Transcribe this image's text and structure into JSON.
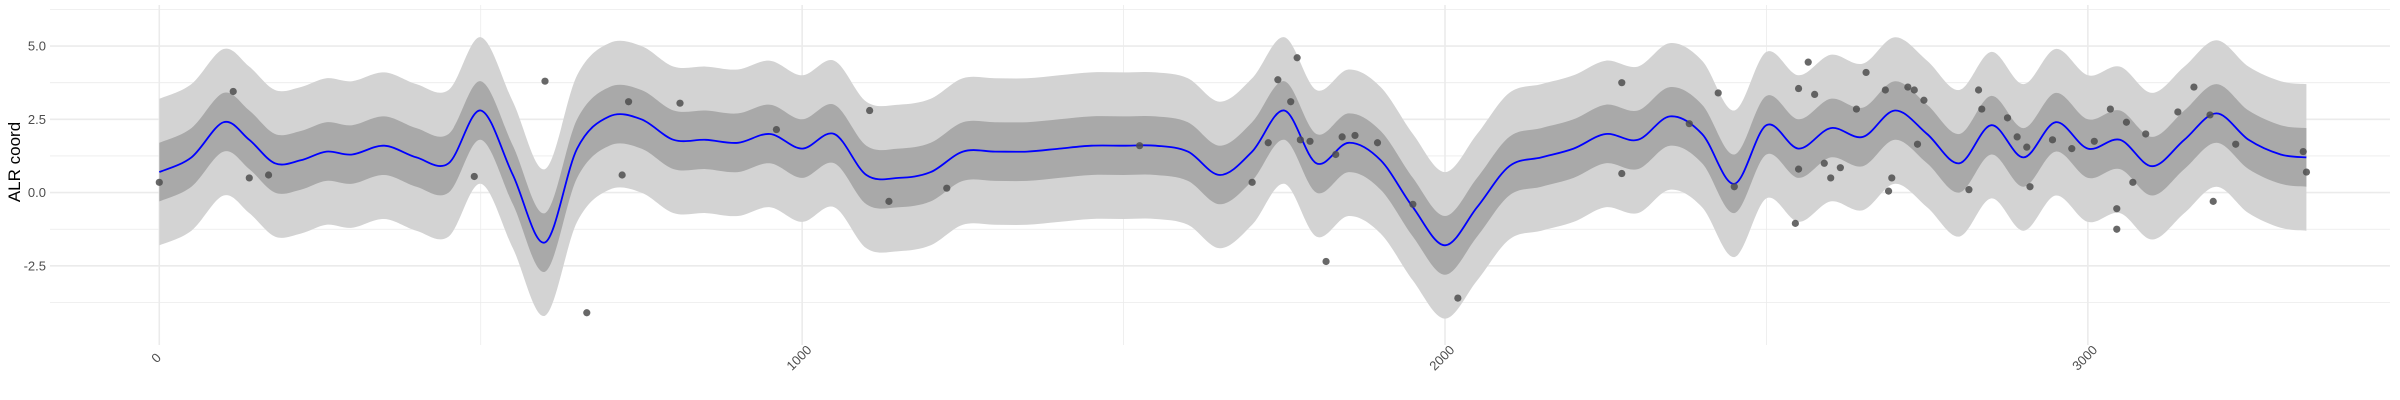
{
  "chart_data": {
    "type": "line",
    "title": "",
    "xlabel": "",
    "ylabel": "ALR coord",
    "xlim": [
      -170,
      3470
    ],
    "ylim": [
      -5.2,
      6.4
    ],
    "x_ticks": [
      0,
      1000,
      2000,
      3000
    ],
    "x_tick_labels": [
      "0",
      "1000",
      "2000",
      "3000"
    ],
    "y_ticks": [
      -2.5,
      0.0,
      2.5,
      5.0
    ],
    "y_tick_labels": [
      "-2.5",
      "0.0",
      "2.5",
      "5.0"
    ],
    "grid": true,
    "colors": {
      "mean_line": "#0000ff",
      "inner_band": "#a9a9a9",
      "outer_band": "#d3d3d3",
      "points": "#4d4d4d",
      "grid": "#ebebeb"
    },
    "series": [
      {
        "x": [
          0,
          50,
          100,
          140,
          180,
          220,
          260,
          300,
          350,
          400,
          450,
          500,
          550,
          600,
          650,
          700,
          750,
          800,
          850,
          900,
          950,
          1000,
          1050,
          1100,
          1150,
          1200,
          1250,
          1300,
          1350,
          1400,
          1450,
          1500,
          1550,
          1600,
          1650,
          1700,
          1750,
          1800,
          1850,
          1900,
          1950,
          2000,
          2050,
          2100,
          2150,
          2200,
          2250,
          2300,
          2350,
          2400,
          2450,
          2500,
          2550,
          2600,
          2650,
          2700,
          2750,
          2800,
          2850,
          2900,
          2950,
          3000,
          3050,
          3100,
          3150,
          3200,
          3250,
          3300,
          3340
        ],
        "mean": [
          0.7,
          1.2,
          2.4,
          1.8,
          1.0,
          1.1,
          1.4,
          1.3,
          1.6,
          1.2,
          1.0,
          2.8,
          0.6,
          -1.7,
          1.5,
          2.6,
          2.5,
          1.8,
          1.8,
          1.7,
          2.0,
          1.5,
          2.0,
          0.6,
          0.5,
          0.7,
          1.4,
          1.4,
          1.4,
          1.5,
          1.6,
          1.6,
          1.6,
          1.4,
          0.6,
          1.4,
          2.8,
          1.0,
          1.7,
          1.1,
          -0.5,
          -1.8,
          -0.5,
          0.9,
          1.2,
          1.5,
          2.0,
          1.8,
          2.6,
          2.0,
          0.3,
          2.3,
          1.5,
          2.2,
          1.9,
          2.8,
          2.0,
          1.0,
          2.3,
          1.2,
          2.4,
          1.5,
          1.8,
          0.9,
          1.8,
          2.7,
          1.8,
          1.3,
          1.2
        ],
        "inner_lower": [
          -0.3,
          0.2,
          1.4,
          0.8,
          0.0,
          0.1,
          0.4,
          0.3,
          0.6,
          0.2,
          0.0,
          1.8,
          -0.4,
          -2.7,
          0.5,
          1.6,
          1.5,
          0.8,
          0.8,
          0.7,
          1.0,
          0.5,
          1.0,
          -0.4,
          -0.5,
          -0.3,
          0.4,
          0.4,
          0.4,
          0.5,
          0.6,
          0.6,
          0.6,
          0.4,
          -0.4,
          0.4,
          1.8,
          0.0,
          0.7,
          0.1,
          -1.5,
          -2.8,
          -1.5,
          -0.1,
          0.2,
          0.5,
          1.0,
          0.8,
          1.6,
          1.0,
          -0.7,
          1.3,
          0.5,
          1.2,
          0.9,
          1.8,
          1.0,
          0.0,
          1.3,
          0.2,
          1.4,
          0.5,
          0.8,
          -0.1,
          0.8,
          1.7,
          0.8,
          0.3,
          0.2
        ],
        "inner_upper": [
          1.7,
          2.2,
          3.4,
          2.8,
          2.0,
          2.1,
          2.4,
          2.3,
          2.6,
          2.2,
          2.0,
          3.8,
          1.6,
          -0.7,
          2.5,
          3.6,
          3.5,
          2.8,
          2.8,
          2.7,
          3.0,
          2.5,
          3.0,
          1.6,
          1.5,
          1.7,
          2.4,
          2.4,
          2.4,
          2.5,
          2.6,
          2.6,
          2.6,
          2.4,
          1.6,
          2.4,
          3.8,
          2.0,
          2.7,
          2.1,
          0.5,
          -0.8,
          0.5,
          1.9,
          2.2,
          2.5,
          3.0,
          2.8,
          3.6,
          3.0,
          1.3,
          3.3,
          2.5,
          3.2,
          2.9,
          3.8,
          3.0,
          2.0,
          3.3,
          2.2,
          3.4,
          2.5,
          2.8,
          1.9,
          2.8,
          3.7,
          2.8,
          2.3,
          2.2
        ],
        "outer_lower": [
          -1.8,
          -1.3,
          -0.1,
          -0.7,
          -1.5,
          -1.4,
          -1.1,
          -1.2,
          -0.9,
          -1.3,
          -1.5,
          0.3,
          -1.9,
          -4.2,
          -1.0,
          0.1,
          0.0,
          -0.7,
          -0.7,
          -0.8,
          -0.5,
          -1.0,
          -0.5,
          -1.9,
          -2.0,
          -1.8,
          -1.1,
          -1.1,
          -1.1,
          -1.0,
          -0.9,
          -0.9,
          -0.9,
          -1.1,
          -1.9,
          -1.1,
          0.3,
          -1.5,
          -0.8,
          -1.4,
          -3.0,
          -4.3,
          -3.0,
          -1.6,
          -1.3,
          -1.0,
          -0.5,
          -0.7,
          0.1,
          -0.5,
          -2.2,
          -0.2,
          -1.0,
          -0.3,
          -0.6,
          0.3,
          -0.5,
          -1.5,
          -0.2,
          -1.3,
          -0.1,
          -1.0,
          -0.7,
          -1.6,
          -0.7,
          0.2,
          -0.7,
          -1.2,
          -1.3
        ],
        "outer_upper": [
          3.2,
          3.7,
          4.9,
          4.3,
          3.5,
          3.6,
          3.9,
          3.8,
          4.1,
          3.7,
          3.5,
          5.3,
          3.1,
          0.8,
          4.0,
          5.1,
          5.0,
          4.3,
          4.3,
          4.2,
          4.5,
          4.0,
          4.5,
          3.1,
          3.0,
          3.2,
          3.9,
          3.9,
          3.9,
          4.0,
          4.1,
          4.1,
          4.1,
          3.9,
          3.1,
          3.9,
          5.3,
          3.5,
          4.2,
          3.6,
          2.0,
          0.7,
          2.0,
          3.4,
          3.7,
          4.0,
          4.5,
          4.3,
          5.1,
          4.5,
          2.8,
          4.8,
          4.0,
          4.7,
          4.4,
          5.3,
          4.5,
          3.5,
          4.8,
          3.7,
          4.9,
          4.0,
          4.3,
          3.4,
          4.3,
          5.2,
          4.3,
          3.8,
          3.7
        ]
      }
    ],
    "points": [
      {
        "x": 0,
        "y": 0.35
      },
      {
        "x": 115,
        "y": 3.45
      },
      {
        "x": 140,
        "y": 0.5
      },
      {
        "x": 170,
        "y": 0.6
      },
      {
        "x": 490,
        "y": 0.55
      },
      {
        "x": 600,
        "y": 3.8
      },
      {
        "x": 665,
        "y": -4.1
      },
      {
        "x": 720,
        "y": 0.6
      },
      {
        "x": 730,
        "y": 3.1
      },
      {
        "x": 810,
        "y": 3.05
      },
      {
        "x": 960,
        "y": 2.15
      },
      {
        "x": 1105,
        "y": 2.8
      },
      {
        "x": 1135,
        "y": -0.3
      },
      {
        "x": 1225,
        "y": 0.15
      },
      {
        "x": 1525,
        "y": 1.6
      },
      {
        "x": 1700,
        "y": 0.35
      },
      {
        "x": 1725,
        "y": 1.7
      },
      {
        "x": 1740,
        "y": 3.85
      },
      {
        "x": 1760,
        "y": 3.1
      },
      {
        "x": 1770,
        "y": 4.6
      },
      {
        "x": 1775,
        "y": 1.8
      },
      {
        "x": 1790,
        "y": 1.75
      },
      {
        "x": 1815,
        "y": -2.35
      },
      {
        "x": 1830,
        "y": 1.3
      },
      {
        "x": 1840,
        "y": 1.9
      },
      {
        "x": 1860,
        "y": 1.95
      },
      {
        "x": 1895,
        "y": 1.7
      },
      {
        "x": 1950,
        "y": -0.4
      },
      {
        "x": 2020,
        "y": -3.6
      },
      {
        "x": 2275,
        "y": 3.75
      },
      {
        "x": 2275,
        "y": 0.65
      },
      {
        "x": 2380,
        "y": 2.35
      },
      {
        "x": 2425,
        "y": 3.4
      },
      {
        "x": 2450,
        "y": 0.2
      },
      {
        "x": 2545,
        "y": -1.05
      },
      {
        "x": 2550,
        "y": 3.55
      },
      {
        "x": 2550,
        "y": 0.8
      },
      {
        "x": 2565,
        "y": 4.45
      },
      {
        "x": 2575,
        "y": 3.35
      },
      {
        "x": 2590,
        "y": 1.0
      },
      {
        "x": 2600,
        "y": 0.5
      },
      {
        "x": 2615,
        "y": 0.85
      },
      {
        "x": 2640,
        "y": 2.85
      },
      {
        "x": 2655,
        "y": 4.1
      },
      {
        "x": 2685,
        "y": 3.5
      },
      {
        "x": 2690,
        "y": 0.05
      },
      {
        "x": 2695,
        "y": 0.5
      },
      {
        "x": 2720,
        "y": 3.6
      },
      {
        "x": 2730,
        "y": 3.5
      },
      {
        "x": 2735,
        "y": 1.65
      },
      {
        "x": 2745,
        "y": 3.15
      },
      {
        "x": 2815,
        "y": 0.1
      },
      {
        "x": 2830,
        "y": 3.5
      },
      {
        "x": 2835,
        "y": 2.85
      },
      {
        "x": 2875,
        "y": 2.55
      },
      {
        "x": 2890,
        "y": 1.9
      },
      {
        "x": 2905,
        "y": 1.55
      },
      {
        "x": 2910,
        "y": 0.2
      },
      {
        "x": 2945,
        "y": 1.8
      },
      {
        "x": 2975,
        "y": 1.5
      },
      {
        "x": 3010,
        "y": 1.75
      },
      {
        "x": 3035,
        "y": 2.85
      },
      {
        "x": 3045,
        "y": -0.55
      },
      {
        "x": 3045,
        "y": -1.25
      },
      {
        "x": 3060,
        "y": 2.4
      },
      {
        "x": 3070,
        "y": 0.35
      },
      {
        "x": 3090,
        "y": 2.0
      },
      {
        "x": 3140,
        "y": 2.75
      },
      {
        "x": 3165,
        "y": 3.6
      },
      {
        "x": 3190,
        "y": 2.65
      },
      {
        "x": 3195,
        "y": -0.3
      },
      {
        "x": 3230,
        "y": 1.65
      },
      {
        "x": 3335,
        "y": 1.4
      },
      {
        "x": 3340,
        "y": 0.7
      }
    ]
  }
}
